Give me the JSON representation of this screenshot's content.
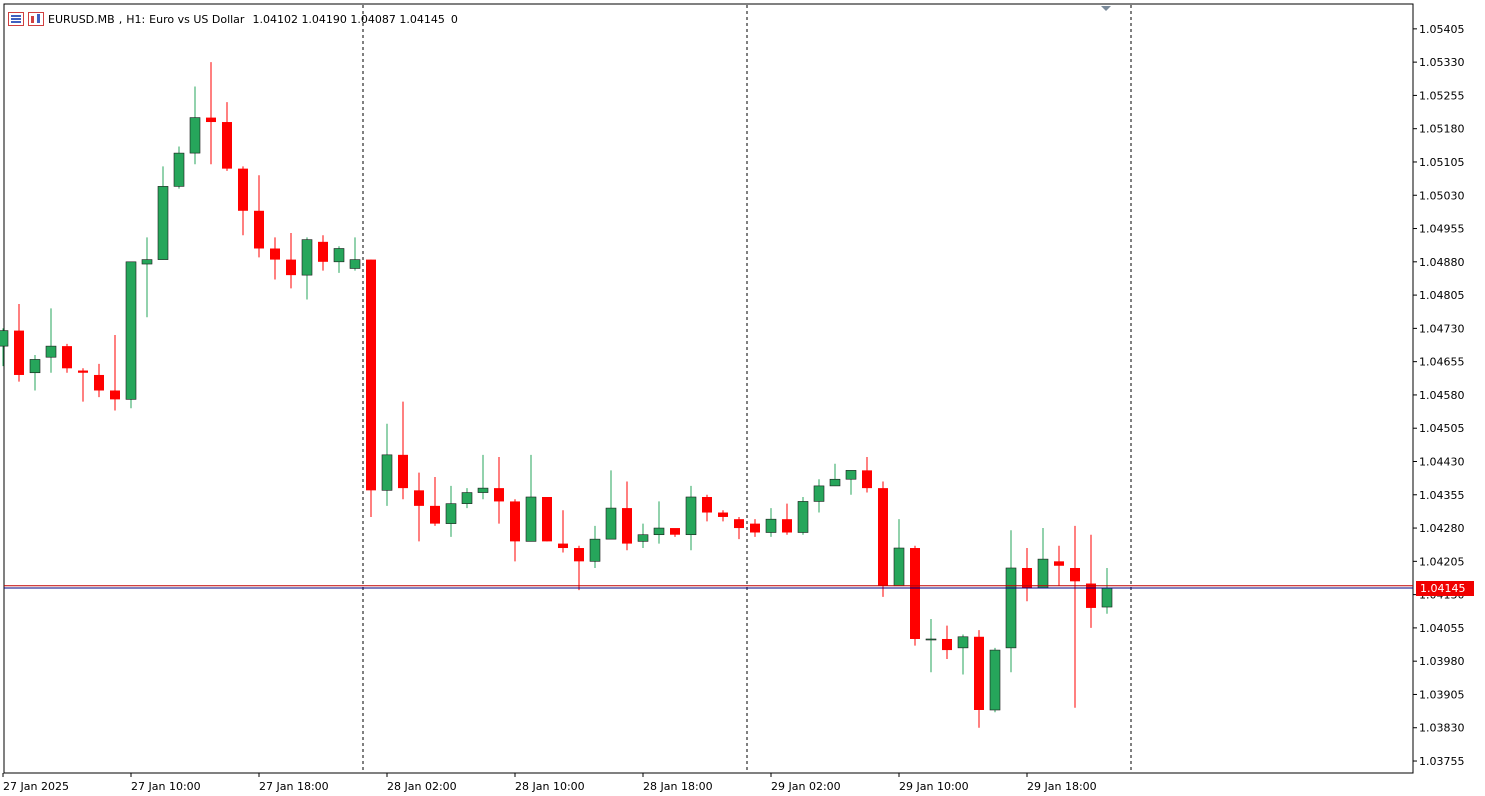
{
  "header": {
    "symbol": "EURUSD.MB",
    "timeframe": "H1:",
    "description": "Euro vs US Dollar",
    "ohlc": "1.04102 1.04190 1.04087 1.04145",
    "extra": "0",
    "icons": [
      "menu-icon",
      "chart-settings-icon"
    ]
  },
  "current_price_label": "1.04145",
  "colors": {
    "bull": "#26a65b",
    "bear": "#ff0000",
    "bid_line": "#000080",
    "ask_line": "#c00000",
    "price_tag_bg": "#f00000",
    "grid_separator": "#000000"
  },
  "chart_data": {
    "type": "candlestick",
    "symbol": "EURUSD.MB",
    "timeframe": "H1",
    "y_ticks": [
      "1.05405",
      "1.05330",
      "1.05255",
      "1.05180",
      "1.05105",
      "1.05030",
      "1.04955",
      "1.04880",
      "1.04805",
      "1.04730",
      "1.04655",
      "1.04580",
      "1.04505",
      "1.04430",
      "1.04355",
      "1.04280",
      "1.04205",
      "1.04130",
      "1.04055",
      "1.03980",
      "1.03905",
      "1.03830",
      "1.03755"
    ],
    "x_ticks": [
      "27 Jan 2025",
      "27 Jan 10:00",
      "27 Jan 18:00",
      "28 Jan 02:00",
      "28 Jan 10:00",
      "28 Jan 18:00",
      "29 Jan 02:00",
      "29 Jan 10:00",
      "29 Jan 18:00"
    ],
    "x_tick_slots": [
      0,
      8,
      16,
      24,
      32,
      40,
      48,
      56,
      64
    ],
    "day_separator_slots": [
      22,
      46,
      70
    ],
    "ylim": [
      1.03728,
      1.05461
    ],
    "bid": 1.04145,
    "ask": 1.0415,
    "candles": [
      {
        "o": 1.0469,
        "h": 1.0473,
        "l": 1.04645,
        "c": 1.04725
      },
      {
        "o": 1.04725,
        "h": 1.04785,
        "l": 1.0461,
        "c": 1.04625
      },
      {
        "o": 1.0463,
        "h": 1.0467,
        "l": 1.0459,
        "c": 1.0466
      },
      {
        "o": 1.04665,
        "h": 1.04775,
        "l": 1.0463,
        "c": 1.0469
      },
      {
        "o": 1.0469,
        "h": 1.04695,
        "l": 1.0463,
        "c": 1.0464
      },
      {
        "o": 1.04635,
        "h": 1.0464,
        "l": 1.04565,
        "c": 1.0463
      },
      {
        "o": 1.04625,
        "h": 1.0465,
        "l": 1.04575,
        "c": 1.0459
      },
      {
        "o": 1.0459,
        "h": 1.04715,
        "l": 1.04545,
        "c": 1.0457
      },
      {
        "o": 1.0457,
        "h": 1.0488,
        "l": 1.0455,
        "c": 1.0488
      },
      {
        "o": 1.04875,
        "h": 1.04935,
        "l": 1.04755,
        "c": 1.04885
      },
      {
        "o": 1.04885,
        "h": 1.05095,
        "l": 1.04885,
        "c": 1.0505
      },
      {
        "o": 1.0505,
        "h": 1.0514,
        "l": 1.05045,
        "c": 1.05125
      },
      {
        "o": 1.05125,
        "h": 1.05275,
        "l": 1.051,
        "c": 1.05205
      },
      {
        "o": 1.05205,
        "h": 1.0533,
        "l": 1.051,
        "c": 1.05195
      },
      {
        "o": 1.05195,
        "h": 1.0524,
        "l": 1.05085,
        "c": 1.0509
      },
      {
        "o": 1.0509,
        "h": 1.05095,
        "l": 1.0494,
        "c": 1.04995
      },
      {
        "o": 1.04995,
        "h": 1.05075,
        "l": 1.0489,
        "c": 1.0491
      },
      {
        "o": 1.0491,
        "h": 1.04935,
        "l": 1.0484,
        "c": 1.04885
      },
      {
        "o": 1.04885,
        "h": 1.04945,
        "l": 1.0482,
        "c": 1.0485
      },
      {
        "o": 1.0485,
        "h": 1.04935,
        "l": 1.04795,
        "c": 1.0493
      },
      {
        "o": 1.04925,
        "h": 1.0494,
        "l": 1.0486,
        "c": 1.0488
      },
      {
        "o": 1.0488,
        "h": 1.04915,
        "l": 1.04855,
        "c": 1.0491
      },
      {
        "o": 1.04865,
        "h": 1.04935,
        "l": 1.0486,
        "c": 1.04885
      },
      {
        "o": 1.04885,
        "h": 1.04885,
        "l": 1.04305,
        "c": 1.04365
      },
      {
        "o": 1.04365,
        "h": 1.04515,
        "l": 1.0433,
        "c": 1.04445
      },
      {
        "o": 1.04445,
        "h": 1.04565,
        "l": 1.04345,
        "c": 1.0437
      },
      {
        "o": 1.04365,
        "h": 1.04405,
        "l": 1.0425,
        "c": 1.0433
      },
      {
        "o": 1.0433,
        "h": 1.04395,
        "l": 1.04285,
        "c": 1.0429
      },
      {
        "o": 1.0429,
        "h": 1.04375,
        "l": 1.0426,
        "c": 1.04335
      },
      {
        "o": 1.04335,
        "h": 1.0437,
        "l": 1.04325,
        "c": 1.0436
      },
      {
        "o": 1.0436,
        "h": 1.04445,
        "l": 1.04345,
        "c": 1.0437
      },
      {
        "o": 1.0437,
        "h": 1.0444,
        "l": 1.0429,
        "c": 1.0434
      },
      {
        "o": 1.0434,
        "h": 1.04345,
        "l": 1.04205,
        "c": 1.0425
      },
      {
        "o": 1.0425,
        "h": 1.04445,
        "l": 1.0425,
        "c": 1.0435
      },
      {
        "o": 1.0435,
        "h": 1.0435,
        "l": 1.0425,
        "c": 1.0425
      },
      {
        "o": 1.04245,
        "h": 1.0432,
        "l": 1.04225,
        "c": 1.04235
      },
      {
        "o": 1.04235,
        "h": 1.0424,
        "l": 1.0414,
        "c": 1.04205
      },
      {
        "o": 1.04205,
        "h": 1.04285,
        "l": 1.0419,
        "c": 1.04255
      },
      {
        "o": 1.04255,
        "h": 1.0441,
        "l": 1.04255,
        "c": 1.04325
      },
      {
        "o": 1.04325,
        "h": 1.04385,
        "l": 1.0423,
        "c": 1.04245
      },
      {
        "o": 1.0425,
        "h": 1.0429,
        "l": 1.04235,
        "c": 1.04265
      },
      {
        "o": 1.04265,
        "h": 1.0434,
        "l": 1.04245,
        "c": 1.0428
      },
      {
        "o": 1.0428,
        "h": 1.04275,
        "l": 1.0426,
        "c": 1.04265
      },
      {
        "o": 1.04265,
        "h": 1.04375,
        "l": 1.0423,
        "c": 1.0435
      },
      {
        "o": 1.0435,
        "h": 1.04355,
        "l": 1.04295,
        "c": 1.04315
      },
      {
        "o": 1.04315,
        "h": 1.0432,
        "l": 1.04295,
        "c": 1.04305
      },
      {
        "o": 1.043,
        "h": 1.04305,
        "l": 1.04255,
        "c": 1.0428
      },
      {
        "o": 1.0429,
        "h": 1.043,
        "l": 1.0426,
        "c": 1.0427
      },
      {
        "o": 1.0427,
        "h": 1.04325,
        "l": 1.0426,
        "c": 1.043
      },
      {
        "o": 1.043,
        "h": 1.04335,
        "l": 1.04265,
        "c": 1.0427
      },
      {
        "o": 1.0427,
        "h": 1.0435,
        "l": 1.04265,
        "c": 1.0434
      },
      {
        "o": 1.0434,
        "h": 1.0439,
        "l": 1.04315,
        "c": 1.04375
      },
      {
        "o": 1.04375,
        "h": 1.04425,
        "l": 1.04375,
        "c": 1.0439
      },
      {
        "o": 1.0439,
        "h": 1.0441,
        "l": 1.04355,
        "c": 1.0441
      },
      {
        "o": 1.0441,
        "h": 1.0444,
        "l": 1.0436,
        "c": 1.0437
      },
      {
        "o": 1.0437,
        "h": 1.04385,
        "l": 1.04125,
        "c": 1.0415
      },
      {
        "o": 1.0415,
        "h": 1.043,
        "l": 1.0415,
        "c": 1.04235
      },
      {
        "o": 1.04235,
        "h": 1.0424,
        "l": 1.04015,
        "c": 1.0403
      },
      {
        "o": 1.0403,
        "h": 1.04075,
        "l": 1.03955,
        "c": 1.0403
      },
      {
        "o": 1.0403,
        "h": 1.0406,
        "l": 1.03985,
        "c": 1.04005
      },
      {
        "o": 1.0401,
        "h": 1.0404,
        "l": 1.0395,
        "c": 1.04035
      },
      {
        "o": 1.04035,
        "h": 1.0405,
        "l": 1.0383,
        "c": 1.0387
      },
      {
        "o": 1.0387,
        "h": 1.0401,
        "l": 1.03865,
        "c": 1.04005
      },
      {
        "o": 1.0401,
        "h": 1.04275,
        "l": 1.03955,
        "c": 1.0419
      },
      {
        "o": 1.0419,
        "h": 1.04235,
        "l": 1.04115,
        "c": 1.04145
      },
      {
        "o": 1.04145,
        "h": 1.0428,
        "l": 1.04145,
        "c": 1.0421
      },
      {
        "o": 1.04205,
        "h": 1.0424,
        "l": 1.0415,
        "c": 1.04195
      },
      {
        "o": 1.0419,
        "h": 1.04285,
        "l": 1.03875,
        "c": 1.0416
      },
      {
        "o": 1.04155,
        "h": 1.04265,
        "l": 1.04055,
        "c": 1.041
      },
      {
        "o": 1.04102,
        "h": 1.0419,
        "l": 1.04087,
        "c": 1.04145
      }
    ]
  }
}
